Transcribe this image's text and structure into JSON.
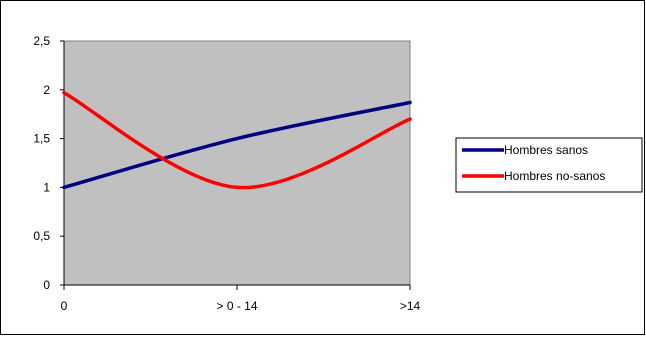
{
  "chart_data": {
    "type": "line",
    "categories": [
      "0",
      "> 0 - 14",
      ">14"
    ],
    "x": [
      0,
      1,
      2
    ],
    "ylim": [
      0,
      2.5
    ],
    "yticks": [
      0,
      0.5,
      1,
      1.5,
      2,
      2.5
    ],
    "ytick_labels": [
      "0",
      "0,5",
      "1",
      "1,5",
      "2",
      "2,5"
    ],
    "grid": false,
    "legend_position": "right",
    "plot_background": "#c0c0c0",
    "series": [
      {
        "name": "Hombres sanos",
        "values": [
          1.0,
          1.5,
          1.87
        ],
        "color": "#000080",
        "smooth": true
      },
      {
        "name": "Hombres no-sanos",
        "values": [
          1.97,
          1.0,
          1.7
        ],
        "color": "#ff0000",
        "smooth": true
      }
    ]
  }
}
